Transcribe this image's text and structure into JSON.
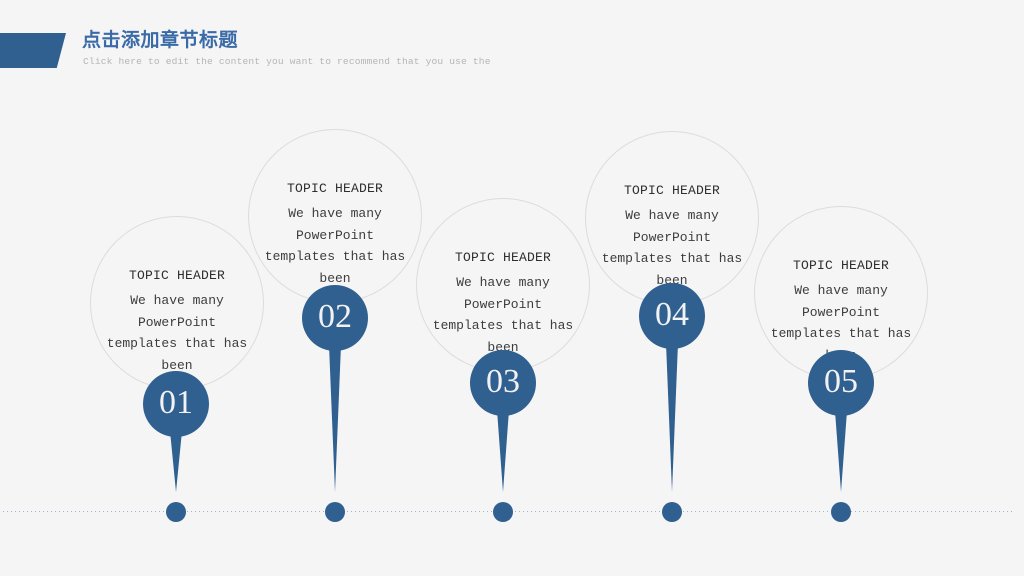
{
  "slide": {
    "title": "点击添加章节标题",
    "subtitle": "Click here to edit the content you want to recommend that you use the"
  },
  "topics": [
    {
      "number": "01",
      "header": "TOPIC HEADER",
      "body": "We have many PowerPoint templates that has been"
    },
    {
      "number": "02",
      "header": "TOPIC HEADER",
      "body": "We have many PowerPoint templates that has been"
    },
    {
      "number": "03",
      "header": "TOPIC HEADER",
      "body": "We have many PowerPoint templates that has been"
    },
    {
      "number": "04",
      "header": "TOPIC HEADER",
      "body": "We have many PowerPoint templates that has been"
    },
    {
      "number": "05",
      "header": "TOPIC HEADER",
      "body": "We have many PowerPoint templates that has been"
    }
  ],
  "colors": {
    "accent": "#306090",
    "title_text": "#3a6ba8",
    "subtitle_text": "#b5b5b5",
    "header_text": "#2e2e2e",
    "body_text": "#3d3d3d",
    "circle_border": "#dcdcdd",
    "badge_text": "#f2f2f2",
    "timeline": "#9db0cc",
    "background": "#f5f5f6"
  }
}
